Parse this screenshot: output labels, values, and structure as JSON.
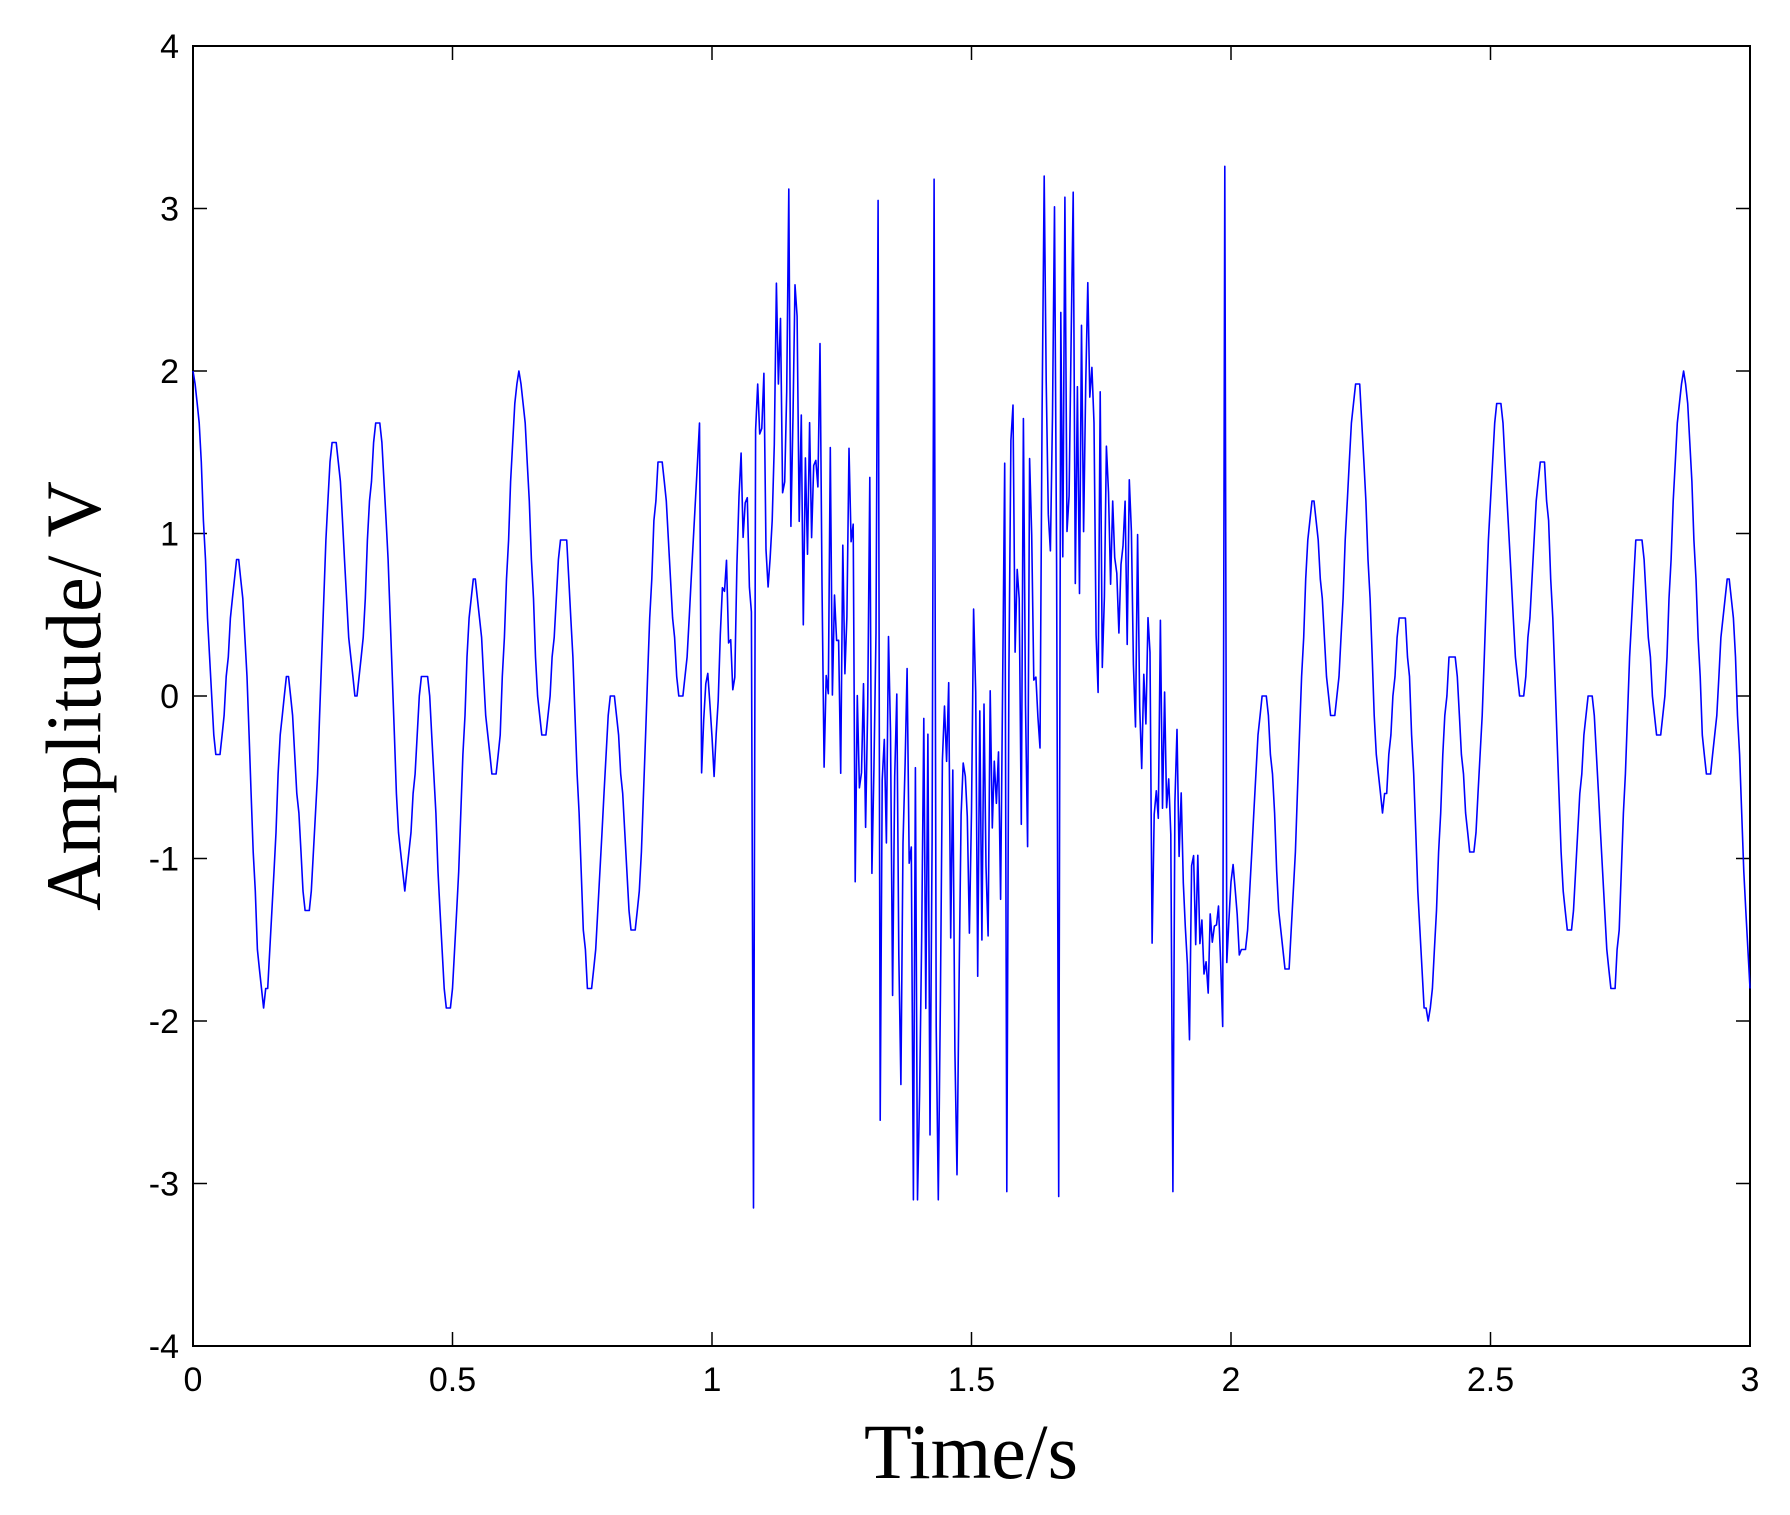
{
  "chart_data": {
    "type": "line",
    "title": "",
    "xlabel": "Time/s",
    "ylabel": "Amplitude/ V",
    "xlim": [
      0,
      3
    ],
    "ylim": [
      -4,
      4
    ],
    "xticks": [
      "0",
      "0.5",
      "1",
      "1.5",
      "2",
      "2.5",
      "3"
    ],
    "yticks": [
      "-4",
      "-3",
      "-2",
      "-1",
      "0",
      "1",
      "2",
      "3",
      "4"
    ],
    "grid": false,
    "legend": "none",
    "line_color": "#0000ff",
    "series": [
      {
        "description": "Signal: two-component stepped sine of amplitude 2 V (periods about 0.25 s and 0.07 s), with a noisy disturbance of larger amplitude (peaks about ±3.2 V) between 1 s and 2 s",
        "sample_step": 0.004,
        "peaks_in_disturbance": [
          [
            1.08,
            -3.15
          ],
          [
            1.15,
            3.12
          ],
          [
            1.32,
            3.05
          ],
          [
            1.43,
            3.18
          ],
          [
            1.57,
            -3.05
          ],
          [
            1.64,
            3.2
          ],
          [
            1.67,
            -3.08
          ],
          [
            1.89,
            -3.05
          ],
          [
            1.99,
            3.26
          ]
        ]
      }
    ]
  }
}
